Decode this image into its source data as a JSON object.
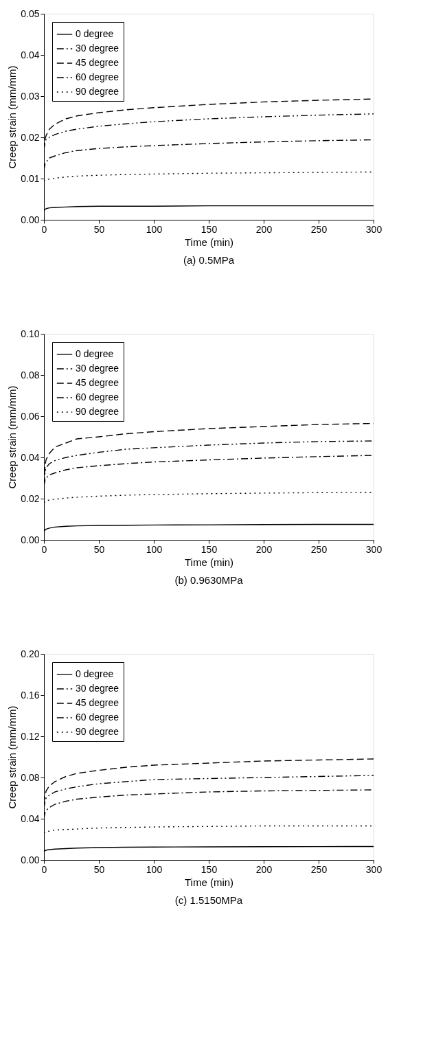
{
  "chart_data": [
    {
      "type": "line",
      "title": "(a) 0.5MPa",
      "xlabel": "Time (min)",
      "ylabel": "Creep strain (mm/mm)",
      "xlim": [
        0,
        300
      ],
      "xticks": [
        0,
        50,
        100,
        150,
        200,
        250,
        300
      ],
      "ylim": [
        0,
        0.05
      ],
      "yticks": [
        {
          "value": 0,
          "label": "0.00"
        },
        0.01,
        0.02,
        0.03,
        0.04,
        0.05
      ],
      "legend": "top left",
      "grid": false,
      "marker": "none",
      "x": [
        0,
        1,
        2,
        5,
        10,
        20,
        30,
        50,
        75,
        100,
        150,
        200,
        250,
        300
      ],
      "series": [
        {
          "name": "0 degree",
          "color": "#000000",
          "line_style": "solid",
          "values": [
            0.0022,
            0.0025,
            0.0027,
            0.0029,
            0.003,
            0.0031,
            0.0032,
            0.0033,
            0.0033,
            0.0033,
            0.0034,
            0.0034,
            0.0034,
            0.0034
          ]
        },
        {
          "name": "30 degree",
          "color": "#000000",
          "line_style": "dashdot",
          "values": [
            0.012,
            0.0135,
            0.014,
            0.015,
            0.0155,
            0.0163,
            0.0168,
            0.0173,
            0.0177,
            0.018,
            0.0185,
            0.0189,
            0.0192,
            0.0194
          ]
        },
        {
          "name": "45 degree",
          "color": "#000000",
          "line_style": "dashed",
          "values": [
            0.017,
            0.0195,
            0.0205,
            0.022,
            0.0232,
            0.0245,
            0.0252,
            0.026,
            0.0267,
            0.0272,
            0.028,
            0.0286,
            0.029,
            0.0293
          ]
        },
        {
          "name": "60 degree",
          "color": "#000000",
          "line_style": "dashdotdot",
          "values": [
            0.017,
            0.019,
            0.0195,
            0.02,
            0.0207,
            0.0215,
            0.022,
            0.0227,
            0.0233,
            0.0238,
            0.0245,
            0.025,
            0.0254,
            0.0257
          ]
        },
        {
          "name": "90 degree",
          "color": "#000000",
          "line_style": "dotted",
          "values": [
            0.0093,
            0.0096,
            0.0097,
            0.0099,
            0.0101,
            0.0104,
            0.0106,
            0.0108,
            0.011,
            0.0111,
            0.0113,
            0.0114,
            0.0115,
            0.0116
          ]
        }
      ]
    },
    {
      "type": "line",
      "title": "(b) 0.9630MPa",
      "xlabel": "Time (min)",
      "ylabel": "Creep strain (mm/mm)",
      "xlim": [
        0,
        300
      ],
      "xticks": [
        0,
        50,
        100,
        150,
        200,
        250,
        300
      ],
      "ylim": [
        0,
        0.1
      ],
      "yticks": [
        {
          "value": 0,
          "label": "0.00"
        },
        0.02,
        0.04,
        0.06,
        0.08,
        {
          "value": 0.1,
          "label": "0.10"
        }
      ],
      "legend": "top left",
      "grid": false,
      "marker": "none",
      "x": [
        0,
        1,
        2,
        5,
        10,
        20,
        30,
        50,
        75,
        100,
        150,
        200,
        250,
        300
      ],
      "series": [
        {
          "name": "0 degree",
          "color": "#000000",
          "line_style": "solid",
          "values": [
            0.004,
            0.0048,
            0.0052,
            0.0057,
            0.0062,
            0.0066,
            0.0068,
            0.007,
            0.0071,
            0.0072,
            0.0073,
            0.0074,
            0.0075,
            0.0075
          ]
        },
        {
          "name": "30 degree",
          "color": "#000000",
          "line_style": "dashdot",
          "values": [
            0.026,
            0.029,
            0.03,
            0.0315,
            0.0325,
            0.034,
            0.035,
            0.036,
            0.037,
            0.0378,
            0.0388,
            0.0397,
            0.0404,
            0.041
          ]
        },
        {
          "name": "45 degree",
          "color": "#000000",
          "line_style": "dashed",
          "values": [
            0.027,
            0.036,
            0.039,
            0.042,
            0.045,
            0.047,
            0.049,
            0.05,
            0.0515,
            0.0525,
            0.054,
            0.055,
            0.056,
            0.0565
          ]
        },
        {
          "name": "60 degree",
          "color": "#000000",
          "line_style": "dashdotdot",
          "values": [
            0.027,
            0.033,
            0.035,
            0.037,
            0.0385,
            0.04,
            0.041,
            0.0425,
            0.044,
            0.0447,
            0.046,
            0.047,
            0.0477,
            0.048
          ]
        },
        {
          "name": "90 degree",
          "color": "#000000",
          "line_style": "dotted",
          "values": [
            0.018,
            0.0185,
            0.019,
            0.0193,
            0.0197,
            0.0203,
            0.0207,
            0.0212,
            0.0217,
            0.022,
            0.0224,
            0.0227,
            0.0229,
            0.023
          ]
        }
      ]
    },
    {
      "type": "line",
      "title": "(c) 1.5150MPa",
      "xlabel": "Time (min)",
      "ylabel": "Creep strain (mm/mm)",
      "xlim": [
        0,
        300
      ],
      "xticks": [
        0,
        50,
        100,
        150,
        200,
        250,
        300
      ],
      "ylim": [
        0,
        0.2
      ],
      "yticks": [
        {
          "value": 0,
          "label": "0.00"
        },
        0.04,
        0.08,
        0.12,
        0.16,
        {
          "value": 0.2,
          "label": "0.20"
        }
      ],
      "legend": "top left",
      "grid": false,
      "marker": "none",
      "x": [
        0,
        1,
        2,
        5,
        10,
        20,
        30,
        50,
        75,
        100,
        150,
        200,
        250,
        300
      ],
      "series": [
        {
          "name": "0 degree",
          "color": "#000000",
          "line_style": "solid",
          "values": [
            0.008,
            0.009,
            0.0095,
            0.01,
            0.0105,
            0.011,
            0.0115,
            0.012,
            0.0123,
            0.0125,
            0.0127,
            0.0128,
            0.0129,
            0.013
          ]
        },
        {
          "name": "30 degree",
          "color": "#000000",
          "line_style": "dashdot",
          "values": [
            0.04,
            0.046,
            0.048,
            0.051,
            0.054,
            0.057,
            0.059,
            0.061,
            0.063,
            0.064,
            0.066,
            0.067,
            0.0675,
            0.068
          ]
        },
        {
          "name": "45 degree",
          "color": "#000000",
          "line_style": "dashed",
          "values": [
            0.055,
            0.063,
            0.067,
            0.072,
            0.076,
            0.081,
            0.084,
            0.087,
            0.09,
            0.092,
            0.094,
            0.096,
            0.097,
            0.098
          ]
        },
        {
          "name": "60 degree",
          "color": "#000000",
          "line_style": "dashdotdot",
          "values": [
            0.05,
            0.057,
            0.06,
            0.063,
            0.066,
            0.069,
            0.071,
            0.074,
            0.076,
            0.078,
            0.079,
            0.08,
            0.081,
            0.082
          ]
        },
        {
          "name": "90 degree",
          "color": "#000000",
          "line_style": "dotted",
          "values": [
            0.026,
            0.027,
            0.0275,
            0.028,
            0.029,
            0.0295,
            0.03,
            0.031,
            0.0315,
            0.032,
            0.0325,
            0.033,
            0.033,
            0.033
          ]
        }
      ]
    }
  ]
}
